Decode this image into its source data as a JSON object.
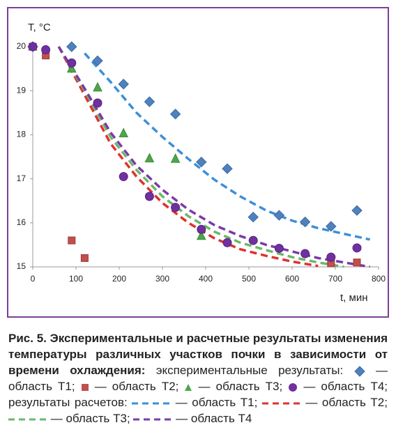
{
  "chart_data": {
    "type": "scatter",
    "y_label": "T, °C",
    "x_label": "t, мин",
    "xlim": [
      0,
      800
    ],
    "xticks": [
      0,
      100,
      200,
      300,
      400,
      500,
      600,
      700,
      800
    ],
    "ylim": [
      15,
      20
    ],
    "yticks": [
      15,
      16,
      17,
      18,
      19,
      20
    ],
    "grid": false,
    "series": [
      {
        "kind": "points",
        "marker": "diamond",
        "color": "#4f81bd",
        "x": [
          0,
          90,
          150,
          210,
          270,
          330,
          390,
          450,
          510,
          570,
          630,
          690,
          750
        ],
        "values": [
          20,
          20.0,
          19.68,
          19.15,
          18.75,
          18.47,
          17.38,
          17.23,
          16.13,
          16.17,
          16.02,
          15.92,
          16.28
        ]
      },
      {
        "kind": "points",
        "marker": "square",
        "color": "#c0504d",
        "x": [
          0,
          30,
          90,
          120,
          690,
          750
        ],
        "values": [
          20,
          19.8,
          15.6,
          15.2,
          15.08,
          15.1
        ]
      },
      {
        "kind": "points",
        "marker": "triangle",
        "color": "#4ea64a",
        "x": [
          0,
          90,
          150,
          210,
          270,
          330,
          390
        ],
        "values": [
          20,
          19.5,
          19.07,
          18.03,
          17.46,
          17.45,
          15.7
        ]
      },
      {
        "kind": "points",
        "marker": "circle",
        "color": "#7030a0",
        "x": [
          0,
          30,
          90,
          150,
          210,
          270,
          330,
          390,
          450,
          510,
          570,
          630,
          690,
          750
        ],
        "values": [
          20,
          19.93,
          19.63,
          18.72,
          17.05,
          16.6,
          16.35,
          15.85,
          15.55,
          15.6,
          15.42,
          15.3,
          15.22,
          15.43
        ]
      },
      {
        "kind": "dashed",
        "color": "#3b8fd8",
        "x": [
          60,
          120,
          180,
          240,
          300,
          360,
          420,
          480,
          540,
          600,
          660,
          720,
          780
        ],
        "values": [
          null,
          19.85,
          19.2,
          18.5,
          17.95,
          17.45,
          16.98,
          16.6,
          16.28,
          16.05,
          15.88,
          15.75,
          15.62
        ]
      },
      {
        "kind": "dashed",
        "color": "#e03030",
        "x": [
          60,
          120,
          180,
          240,
          300,
          360,
          420,
          480,
          540,
          600,
          660,
          720,
          780
        ],
        "values": [
          20,
          18.9,
          17.8,
          17.05,
          16.45,
          16.0,
          15.65,
          15.4,
          15.25,
          15.12,
          15.02,
          null,
          null
        ]
      },
      {
        "kind": "dashed",
        "color": "#6ab86a",
        "x": [
          60,
          120,
          180,
          240,
          300,
          360,
          420,
          480,
          540,
          600,
          660,
          720,
          780
        ],
        "values": [
          20,
          19.0,
          17.95,
          17.2,
          16.6,
          16.15,
          15.8,
          15.55,
          15.38,
          15.22,
          15.1,
          15.0,
          null
        ]
      },
      {
        "kind": "dashed",
        "color": "#7a3aa8",
        "x": [
          60,
          120,
          180,
          240,
          300,
          360,
          420,
          480,
          540,
          600,
          660,
          720,
          780
        ],
        "values": [
          20,
          19.05,
          18.05,
          17.3,
          16.75,
          16.3,
          15.95,
          15.7,
          15.5,
          15.35,
          15.2,
          15.1,
          15.0
        ]
      }
    ]
  },
  "caption": {
    "title": "Рис. 5. Экспериментальные и расчетные результаты изменения температуры различных участков почки в зависимости от времени охлаждения:",
    "experimental_label": "экспериментальные результаты:",
    "experimental_items": [
      "— область Т1;",
      "— область Т2;",
      "— область Т3;",
      "— область Т4;"
    ],
    "calculated_label": "результаты расчетов:",
    "calculated_items": [
      "— область Т1;",
      "— область Т2;",
      "— область Т3;",
      "— область Т4"
    ]
  }
}
